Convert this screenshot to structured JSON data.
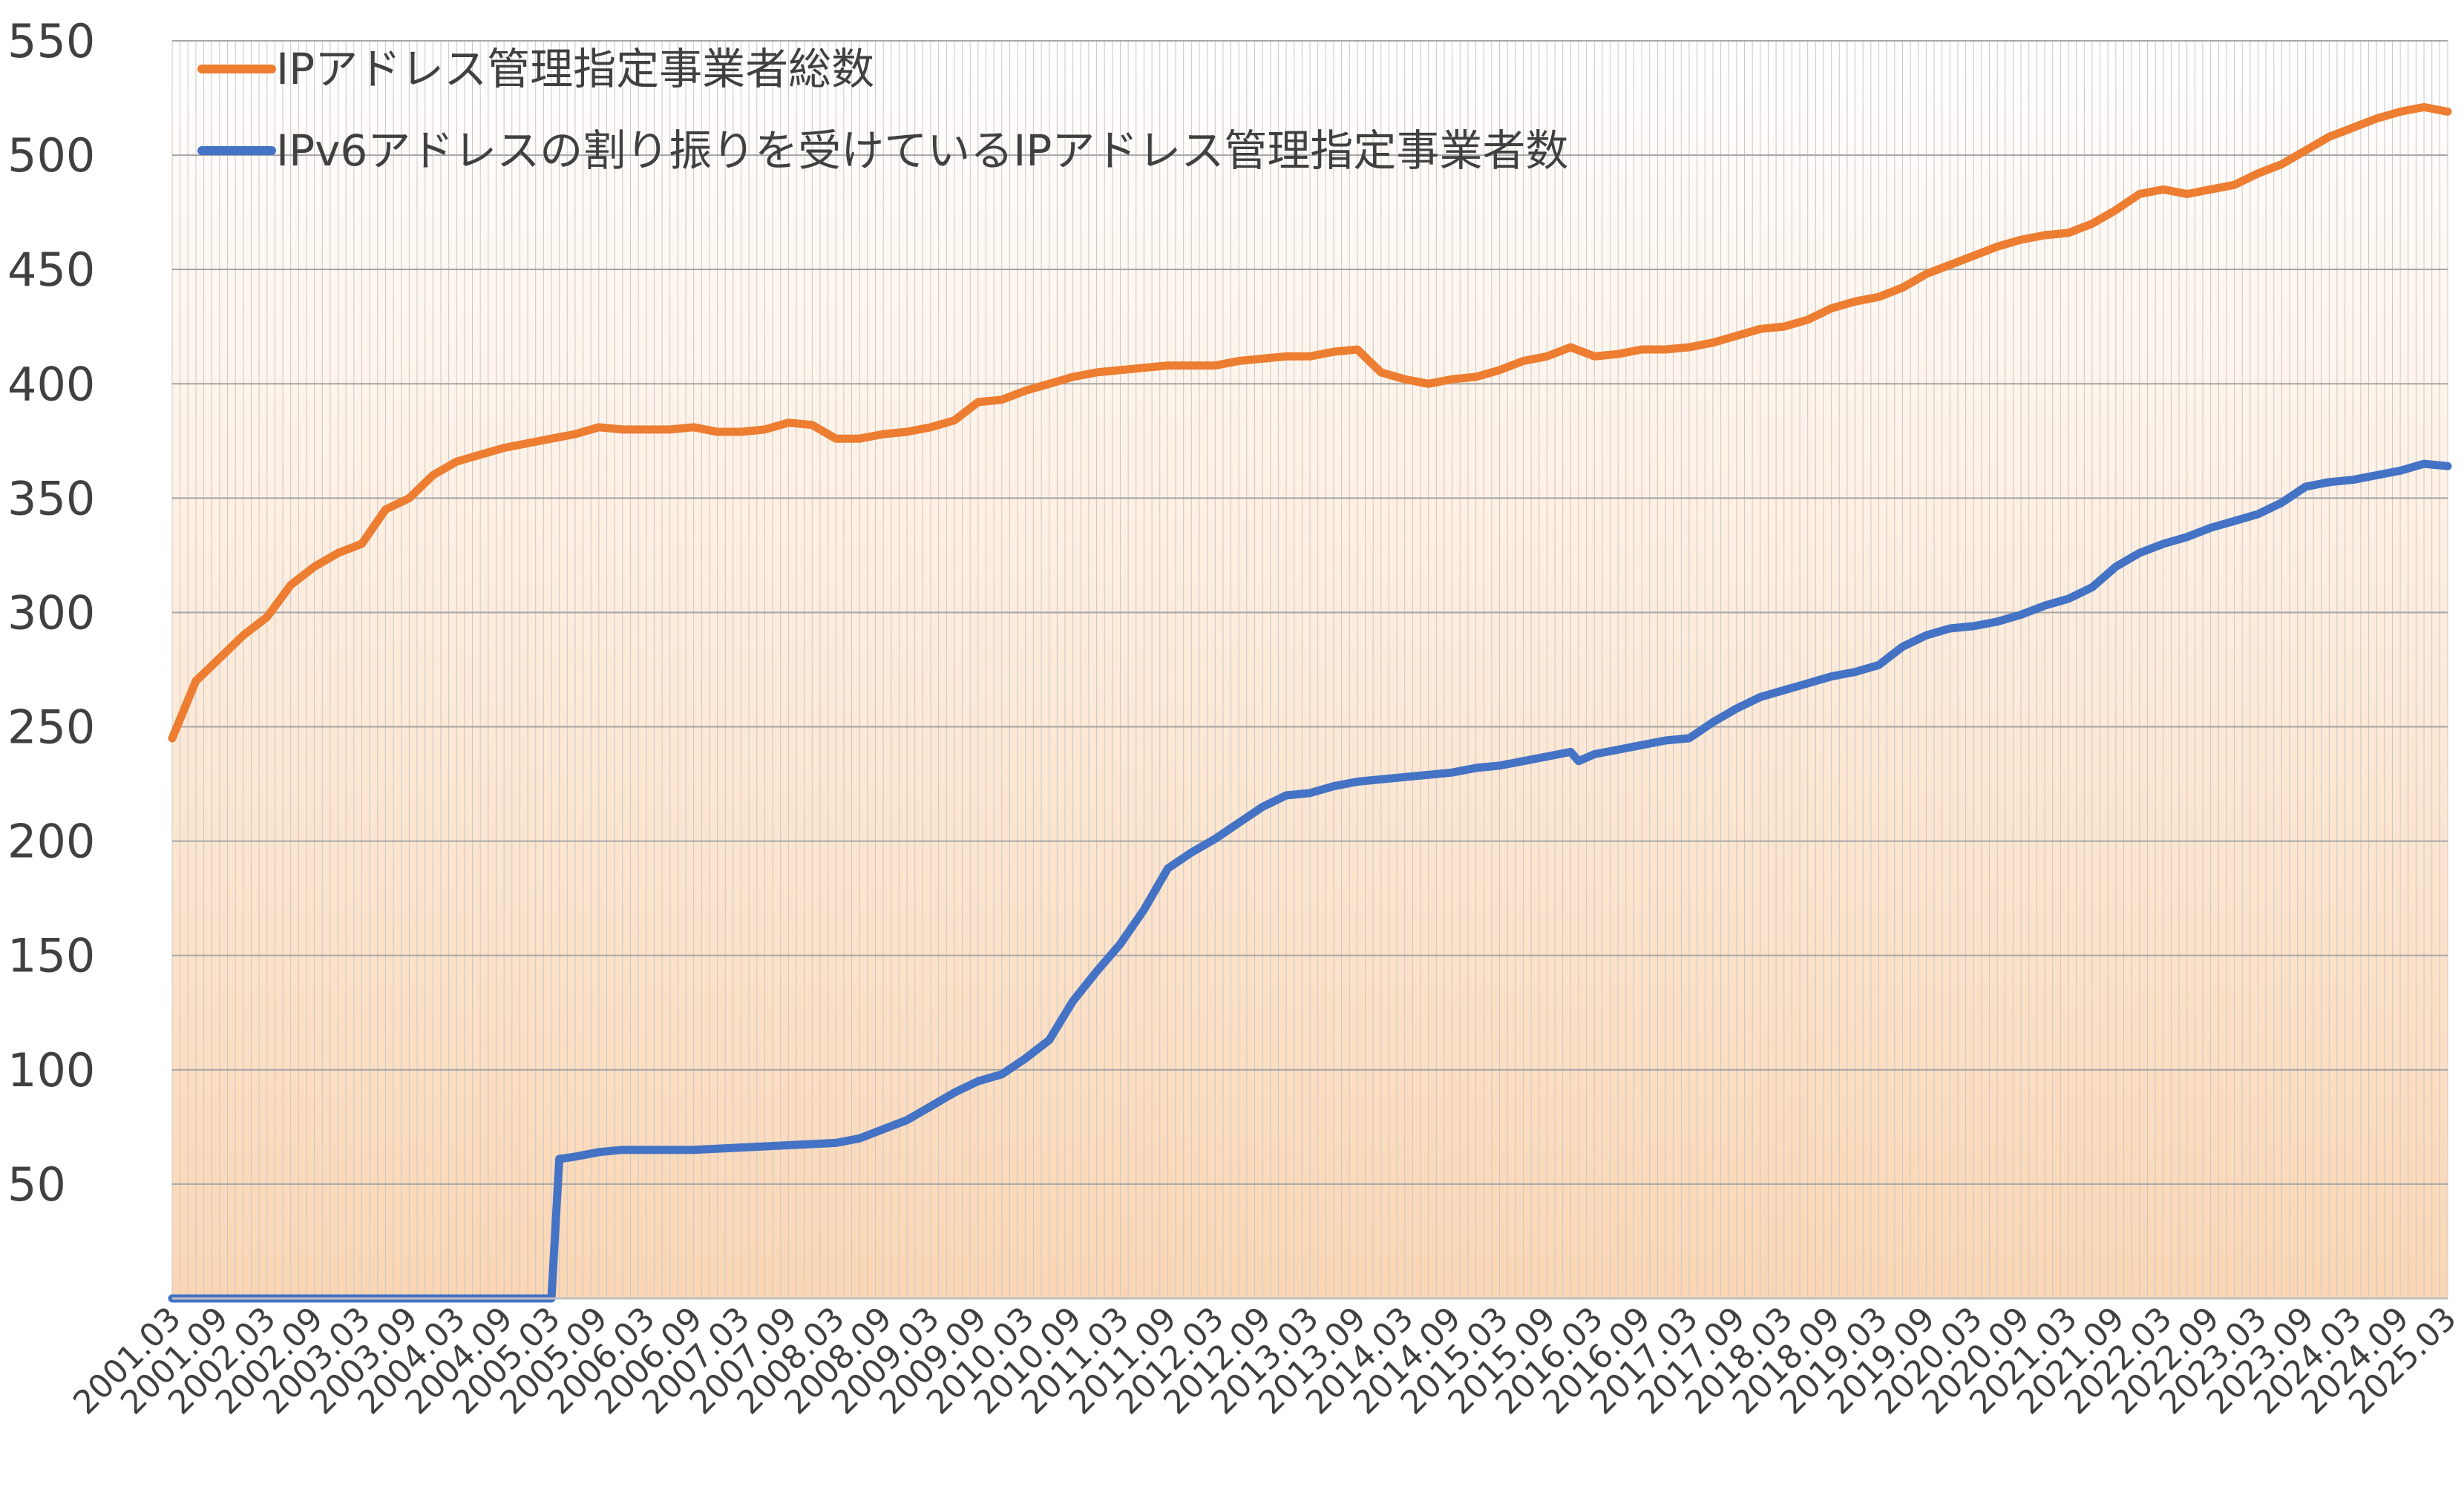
{
  "chart_data": {
    "type": "line",
    "title": "",
    "xlabel": "",
    "ylabel": "",
    "ylim": [
      0,
      550
    ],
    "yticks": [
      50,
      100,
      150,
      200,
      250,
      300,
      350,
      400,
      450,
      500,
      550
    ],
    "grid": true,
    "legend_position": "top-left",
    "x_labels": [
      "2001.03",
      "2001.09",
      "2002.03",
      "2002.09",
      "2003.03",
      "2003.09",
      "2004.03",
      "2004.09",
      "2005.03",
      "2005.09",
      "2006.03",
      "2006.09",
      "2007.03",
      "2007.09",
      "2008.03",
      "2008.09",
      "2009.03",
      "2009.09",
      "2010.03",
      "2010.09",
      "2011.03",
      "2011.09",
      "2012.03",
      "2012.09",
      "2013.03",
      "2013.09",
      "2014.03",
      "2014.09",
      "2015.03",
      "2015.09",
      "2016.03",
      "2016.09",
      "2017.03",
      "2017.09",
      "2018.03",
      "2018.09",
      "2019.03",
      "2019.09",
      "2020.03",
      "2020.09",
      "2021.03",
      "2021.09",
      "2022.03",
      "2022.09",
      "2023.03",
      "2023.09",
      "2024.03",
      "2024.09",
      "2025.03"
    ],
    "series": [
      {
        "name": "IPアドレス管理指定事業者総数",
        "color": "#ED7D31",
        "points": [
          [
            "2001.03",
            245
          ],
          [
            "2001.06",
            270
          ],
          [
            "2001.09",
            280
          ],
          [
            "2001.12",
            290
          ],
          [
            "2002.03",
            298
          ],
          [
            "2002.06",
            312
          ],
          [
            "2002.09",
            320
          ],
          [
            "2002.12",
            326
          ],
          [
            "2003.03",
            330
          ],
          [
            "2003.06",
            345
          ],
          [
            "2003.09",
            350
          ],
          [
            "2003.12",
            360
          ],
          [
            "2004.03",
            366
          ],
          [
            "2004.06",
            369
          ],
          [
            "2004.09",
            372
          ],
          [
            "2004.12",
            374
          ],
          [
            "2005.03",
            376
          ],
          [
            "2005.06",
            378
          ],
          [
            "2005.09",
            381
          ],
          [
            "2005.12",
            380
          ],
          [
            "2006.03",
            380
          ],
          [
            "2006.06",
            380
          ],
          [
            "2006.09",
            381
          ],
          [
            "2006.12",
            379
          ],
          [
            "2007.03",
            379
          ],
          [
            "2007.06",
            380
          ],
          [
            "2007.09",
            383
          ],
          [
            "2007.12",
            382
          ],
          [
            "2008.03",
            376
          ],
          [
            "2008.06",
            376
          ],
          [
            "2008.09",
            378
          ],
          [
            "2008.12",
            379
          ],
          [
            "2009.03",
            381
          ],
          [
            "2009.06",
            384
          ],
          [
            "2009.09",
            392
          ],
          [
            "2009.12",
            393
          ],
          [
            "2010.03",
            397
          ],
          [
            "2010.06",
            400
          ],
          [
            "2010.09",
            403
          ],
          [
            "2010.12",
            405
          ],
          [
            "2011.03",
            406
          ],
          [
            "2011.06",
            407
          ],
          [
            "2011.09",
            408
          ],
          [
            "2011.12",
            408
          ],
          [
            "2012.03",
            408
          ],
          [
            "2012.06",
            410
          ],
          [
            "2012.09",
            411
          ],
          [
            "2012.12",
            412
          ],
          [
            "2013.03",
            412
          ],
          [
            "2013.06",
            414
          ],
          [
            "2013.09",
            415
          ],
          [
            "2013.12",
            405
          ],
          [
            "2014.03",
            402
          ],
          [
            "2014.06",
            400
          ],
          [
            "2014.09",
            402
          ],
          [
            "2014.12",
            403
          ],
          [
            "2015.03",
            406
          ],
          [
            "2015.06",
            410
          ],
          [
            "2015.09",
            412
          ],
          [
            "2015.12",
            416
          ],
          [
            "2016.03",
            412
          ],
          [
            "2016.06",
            413
          ],
          [
            "2016.09",
            415
          ],
          [
            "2016.12",
            415
          ],
          [
            "2017.03",
            416
          ],
          [
            "2017.06",
            418
          ],
          [
            "2017.09",
            421
          ],
          [
            "2017.12",
            424
          ],
          [
            "2018.03",
            425
          ],
          [
            "2018.06",
            428
          ],
          [
            "2018.09",
            433
          ],
          [
            "2018.12",
            436
          ],
          [
            "2019.03",
            438
          ],
          [
            "2019.06",
            442
          ],
          [
            "2019.09",
            448
          ],
          [
            "2019.12",
            452
          ],
          [
            "2020.03",
            456
          ],
          [
            "2020.06",
            460
          ],
          [
            "2020.09",
            463
          ],
          [
            "2020.12",
            465
          ],
          [
            "2021.03",
            466
          ],
          [
            "2021.06",
            470
          ],
          [
            "2021.09",
            476
          ],
          [
            "2021.12",
            483
          ],
          [
            "2022.03",
            485
          ],
          [
            "2022.06",
            483
          ],
          [
            "2022.09",
            485
          ],
          [
            "2022.12",
            487
          ],
          [
            "2023.03",
            492
          ],
          [
            "2023.06",
            496
          ],
          [
            "2023.09",
            502
          ],
          [
            "2023.12",
            508
          ],
          [
            "2024.03",
            512
          ],
          [
            "2024.06",
            516
          ],
          [
            "2024.09",
            519
          ],
          [
            "2024.12",
            521
          ],
          [
            "2025.03",
            519
          ]
        ]
      },
      {
        "name": "IPv6アドレスの割り振りを受けているIPアドレス管理指定事業者数",
        "color": "#4472C4",
        "points": [
          [
            "2001.03",
            0
          ],
          [
            "2005.03",
            0
          ],
          [
            "2005.04",
            61
          ],
          [
            "2005.06",
            62
          ],
          [
            "2005.09",
            64
          ],
          [
            "2005.12",
            65
          ],
          [
            "2006.03",
            65
          ],
          [
            "2006.09",
            65
          ],
          [
            "2007.03",
            66
          ],
          [
            "2007.09",
            67
          ],
          [
            "2008.03",
            68
          ],
          [
            "2008.06",
            70
          ],
          [
            "2008.09",
            74
          ],
          [
            "2008.12",
            78
          ],
          [
            "2009.03",
            84
          ],
          [
            "2009.06",
            90
          ],
          [
            "2009.09",
            95
          ],
          [
            "2009.12",
            98
          ],
          [
            "2010.03",
            105
          ],
          [
            "2010.06",
            113
          ],
          [
            "2010.09",
            130
          ],
          [
            "2010.12",
            143
          ],
          [
            "2011.03",
            155
          ],
          [
            "2011.06",
            170
          ],
          [
            "2011.09",
            188
          ],
          [
            "2011.12",
            195
          ],
          [
            "2012.03",
            201
          ],
          [
            "2012.06",
            208
          ],
          [
            "2012.09",
            215
          ],
          [
            "2012.12",
            220
          ],
          [
            "2013.03",
            221
          ],
          [
            "2013.06",
            224
          ],
          [
            "2013.09",
            226
          ],
          [
            "2013.12",
            227
          ],
          [
            "2014.03",
            228
          ],
          [
            "2014.06",
            229
          ],
          [
            "2014.09",
            230
          ],
          [
            "2014.12",
            232
          ],
          [
            "2015.03",
            233
          ],
          [
            "2015.06",
            235
          ],
          [
            "2015.09",
            237
          ],
          [
            "2015.12",
            239
          ],
          [
            "2016.01",
            235
          ],
          [
            "2016.03",
            238
          ],
          [
            "2016.06",
            240
          ],
          [
            "2016.09",
            242
          ],
          [
            "2016.12",
            244
          ],
          [
            "2017.03",
            245
          ],
          [
            "2017.06",
            252
          ],
          [
            "2017.09",
            258
          ],
          [
            "2017.12",
            263
          ],
          [
            "2018.03",
            266
          ],
          [
            "2018.06",
            269
          ],
          [
            "2018.09",
            272
          ],
          [
            "2018.12",
            274
          ],
          [
            "2019.03",
            277
          ],
          [
            "2019.06",
            285
          ],
          [
            "2019.09",
            290
          ],
          [
            "2019.12",
            293
          ],
          [
            "2020.03",
            294
          ],
          [
            "2020.06",
            296
          ],
          [
            "2020.09",
            299
          ],
          [
            "2020.12",
            303
          ],
          [
            "2021.03",
            306
          ],
          [
            "2021.06",
            311
          ],
          [
            "2021.09",
            320
          ],
          [
            "2021.12",
            326
          ],
          [
            "2022.03",
            330
          ],
          [
            "2022.06",
            333
          ],
          [
            "2022.09",
            337
          ],
          [
            "2022.12",
            340
          ],
          [
            "2023.03",
            343
          ],
          [
            "2023.06",
            348
          ],
          [
            "2023.09",
            355
          ],
          [
            "2023.12",
            357
          ],
          [
            "2024.03",
            358
          ],
          [
            "2024.06",
            360
          ],
          [
            "2024.09",
            362
          ],
          [
            "2024.12",
            365
          ],
          [
            "2025.03",
            364
          ]
        ]
      }
    ]
  }
}
